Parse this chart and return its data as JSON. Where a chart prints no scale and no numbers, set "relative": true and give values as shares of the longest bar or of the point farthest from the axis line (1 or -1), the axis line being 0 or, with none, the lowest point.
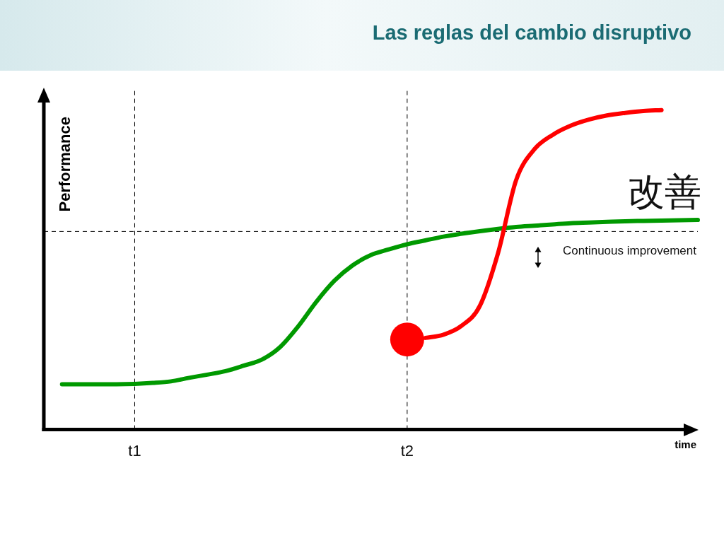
{
  "chart_data": {
    "type": "line",
    "title": "Las reglas del cambio disruptivo",
    "xlabel": "time",
    "ylabel": "Performance",
    "relative": true,
    "categories": [
      null,
      null,
      null,
      null,
      null,
      "t1",
      null,
      null,
      null,
      null,
      null,
      null,
      null,
      null,
      null,
      null,
      null,
      null,
      null,
      null,
      "t2",
      null,
      null,
      null,
      null,
      null,
      null,
      null,
      null,
      null,
      null,
      null,
      null,
      null,
      null,
      null,
      null
    ],
    "marker": "none",
    "line_style": "solid",
    "series": [
      {
        "color": "#009900",
        "values": [
          null,
          0.142,
          0.142,
          0.142,
          0.142,
          0.143,
          0.146,
          0.151,
          0.162,
          0.172,
          0.183,
          0.2,
          0.219,
          0.258,
          0.323,
          0.4,
          0.466,
          0.514,
          0.546,
          0.564,
          0.58,
          0.592,
          0.604,
          0.613,
          0.621,
          0.628,
          0.634,
          0.638,
          0.642,
          0.646,
          0.648,
          0.65,
          0.652,
          0.653,
          0.654,
          0.655,
          0.656
        ]
      },
      {
        "color": "#ff0000",
        "values": [
          null,
          null,
          null,
          null,
          null,
          null,
          null,
          null,
          null,
          null,
          null,
          null,
          null,
          null,
          null,
          null,
          null,
          null,
          null,
          null,
          null,
          0.287,
          0.297,
          0.325,
          0.387,
          0.552,
          0.781,
          0.877,
          0.922,
          0.951,
          0.97,
          0.983,
          0.991,
          0.997,
          1.0,
          null,
          null
        ]
      },
      {
        "type": "scatter",
        "marker": "circle",
        "color": "#ff0000",
        "values": [
          null,
          null,
          null,
          null,
          null,
          null,
          null,
          null,
          null,
          null,
          null,
          null,
          null,
          null,
          null,
          null,
          null,
          null,
          null,
          null,
          0.282,
          null,
          null,
          null,
          null,
          null,
          null,
          null,
          null,
          null,
          null,
          null,
          null,
          null,
          null,
          null,
          null
        ]
      }
    ],
    "ref_lines": [
      {
        "axis": "x",
        "value": "t1",
        "line_style": "dashed"
      },
      {
        "axis": "x",
        "value": "t2",
        "line_style": "dashed"
      },
      {
        "axis": "y",
        "value": 0.62,
        "line_style": "dashed"
      }
    ],
    "annotations": [
      "改善",
      "Continuous improvement"
    ]
  }
}
